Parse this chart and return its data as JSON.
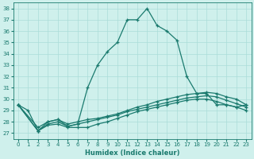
{
  "xlabel": "Humidex (Indice chaleur)",
  "background_color": "#cff0ec",
  "grid_color": "#aaddd8",
  "line_color": "#1a7a6e",
  "xlim": [
    -0.5,
    23.5
  ],
  "ylim": [
    26.5,
    38.5
  ],
  "yticks": [
    27,
    28,
    29,
    30,
    31,
    32,
    33,
    34,
    35,
    36,
    37,
    38
  ],
  "xticks": [
    0,
    1,
    2,
    3,
    4,
    5,
    6,
    7,
    8,
    9,
    10,
    11,
    12,
    13,
    14,
    15,
    16,
    17,
    18,
    19,
    20,
    21,
    22,
    23
  ],
  "series": [
    {
      "x": [
        0,
        1,
        2,
        3,
        4,
        5,
        6,
        7,
        8,
        9,
        10,
        11,
        12,
        13,
        14,
        15,
        16,
        17,
        18,
        19,
        20,
        21,
        22,
        23
      ],
      "y": [
        29.5,
        29.0,
        27.2,
        28.0,
        28.2,
        27.6,
        27.8,
        31.0,
        33.0,
        34.2,
        35.0,
        37.0,
        37.0,
        38.0,
        36.5,
        36.0,
        35.2,
        32.0,
        30.5,
        30.5,
        29.5,
        29.5,
        29.3,
        29.5
      ]
    },
    {
      "x": [
        0,
        2,
        3,
        4,
        5,
        6,
        7,
        8,
        9,
        10,
        11,
        12,
        13,
        14,
        15,
        16,
        17,
        18,
        19,
        20,
        21,
        22,
        23
      ],
      "y": [
        29.5,
        27.5,
        28.0,
        28.2,
        27.8,
        28.0,
        28.2,
        28.3,
        28.5,
        28.7,
        29.0,
        29.3,
        29.5,
        29.8,
        30.0,
        30.2,
        30.4,
        30.5,
        30.6,
        30.5,
        30.2,
        30.0,
        29.5
      ]
    },
    {
      "x": [
        0,
        2,
        3,
        4,
        5,
        6,
        7,
        8,
        9,
        10,
        11,
        12,
        13,
        14,
        15,
        16,
        17,
        18,
        19,
        20,
        21,
        22,
        23
      ],
      "y": [
        29.5,
        27.2,
        27.8,
        28.0,
        27.6,
        27.8,
        28.0,
        28.2,
        28.4,
        28.6,
        28.9,
        29.1,
        29.3,
        29.5,
        29.7,
        29.9,
        30.1,
        30.2,
        30.3,
        30.2,
        29.9,
        29.6,
        29.3
      ]
    },
    {
      "x": [
        0,
        2,
        3,
        4,
        5,
        6,
        7,
        8,
        9,
        10,
        11,
        12,
        13,
        14,
        15,
        16,
        17,
        18,
        19,
        20,
        21,
        22,
        23
      ],
      "y": [
        29.5,
        27.2,
        27.7,
        27.8,
        27.5,
        27.5,
        27.5,
        27.8,
        28.0,
        28.3,
        28.6,
        28.9,
        29.1,
        29.3,
        29.5,
        29.7,
        29.9,
        30.0,
        30.0,
        29.8,
        29.5,
        29.3,
        29.0
      ]
    }
  ]
}
